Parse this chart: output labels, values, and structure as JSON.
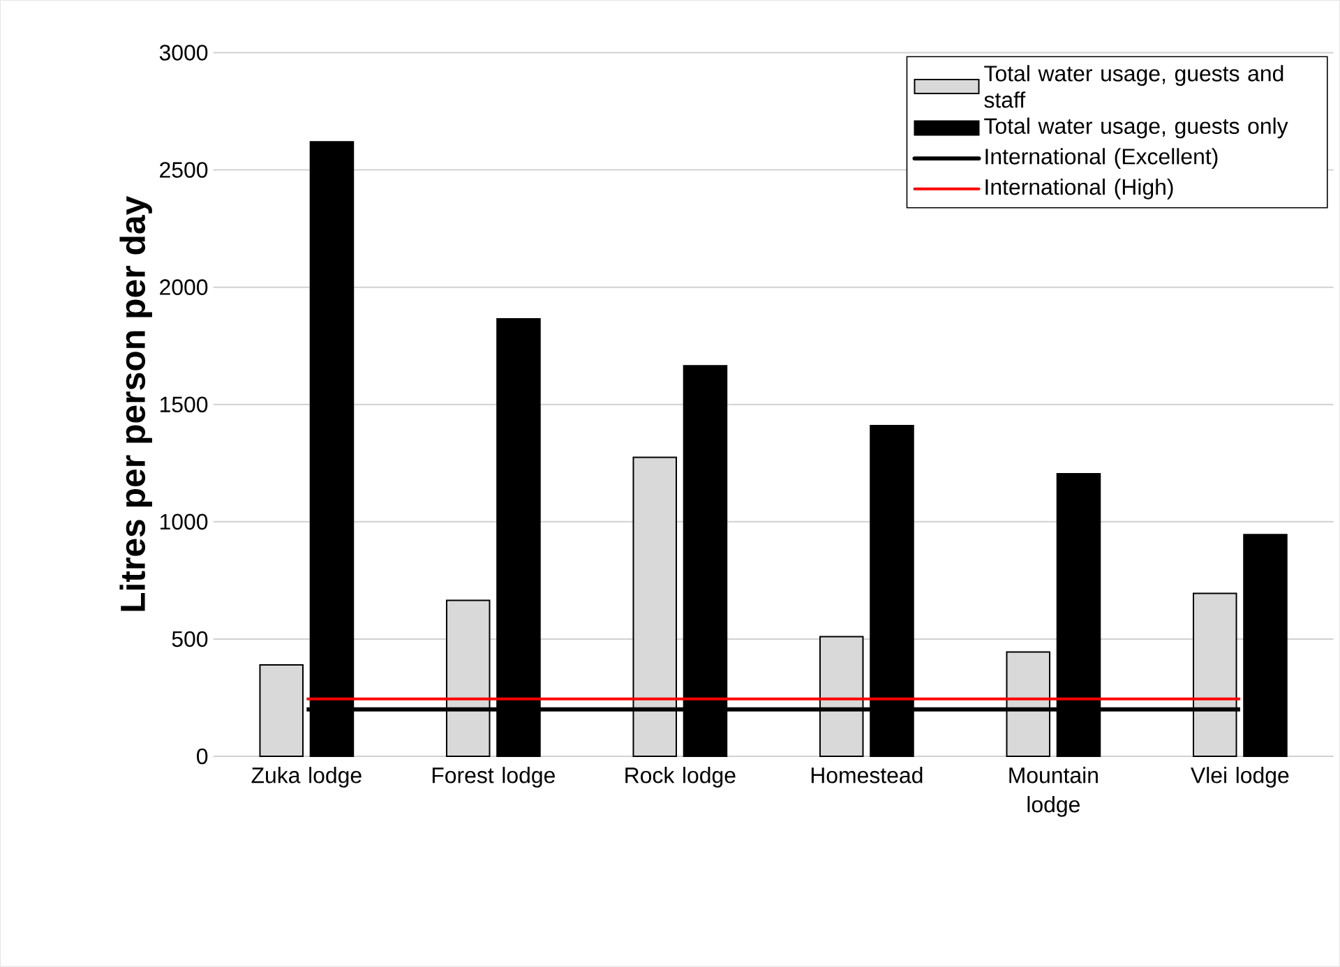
{
  "chart_data": {
    "type": "bar",
    "ylabel": "Litres per person per day",
    "categories": [
      "Zuka lodge",
      "Forest lodge",
      "Rock lodge",
      "Homestead",
      "Mountain lodge",
      "Vlei lodge"
    ],
    "series": [
      {
        "name": "Total water usage, guests and staff",
        "color": "#d9d9d9",
        "values": [
          390,
          665,
          1275,
          510,
          445,
          695
        ]
      },
      {
        "name": "Total water usage, guests only",
        "color": "#000000",
        "values": [
          2620,
          1865,
          1665,
          1410,
          1205,
          945
        ]
      },
      {
        "name": "International (Excellent)",
        "type": "line",
        "color": "#000000",
        "values": [
          200,
          200,
          200,
          200,
          200,
          200
        ]
      },
      {
        "name": "International (High)",
        "type": "line",
        "color": "#ff0000",
        "values": [
          245,
          245,
          245,
          245,
          245,
          245
        ]
      }
    ],
    "ylim": [
      0,
      3000
    ],
    "yticks": [
      0,
      500,
      1000,
      1500,
      2000,
      2500,
      3000
    ],
    "grid": "y",
    "legend": "top right"
  }
}
